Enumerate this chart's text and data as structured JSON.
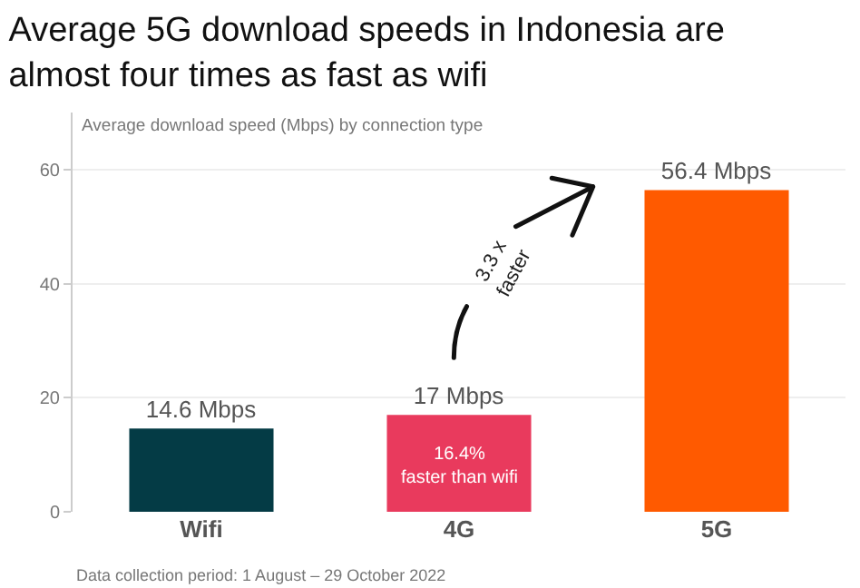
{
  "chart_data": {
    "type": "bar",
    "title": "Average 5G download speeds in Indonesia are\nalmost four times as fast as wifi",
    "ylabel": "Average download speed (Mbps) by connection type",
    "categories": [
      "Wifi",
      "4G",
      "5G"
    ],
    "values": [
      14.6,
      17,
      56.4
    ],
    "colors": [
      "#043b45",
      "#e93a5d",
      "#ff5a00"
    ],
    "value_labels": [
      "14.6 Mbps",
      "17 Mbps",
      "56.4 Mbps"
    ],
    "ylim": [
      0,
      70
    ],
    "yticks": [
      0,
      20,
      40,
      60
    ],
    "grid": "y",
    "annotations": [
      "16.4%\nfaster than wifi",
      "3.3 x\nfaster",
      "Data collection period: 1 August – 29 October 2022"
    ]
  }
}
